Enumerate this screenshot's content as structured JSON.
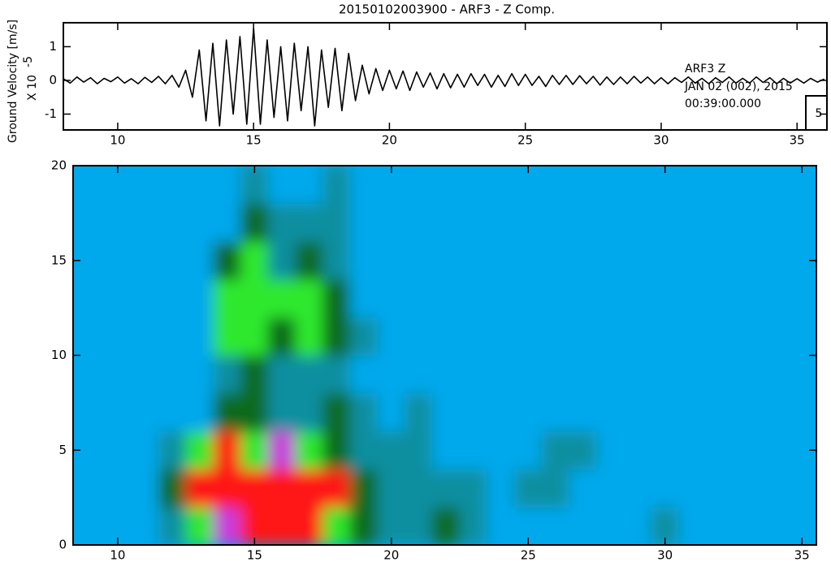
{
  "chart_data": [
    {
      "type": "line",
      "title": "20150102003900 - ARF3 - Z Comp.",
      "ylabel": "Ground Velocity [m/s]",
      "yscale_label": "X 10",
      "yscale_exponent": "-5",
      "annotations": [
        "ARF3  Z",
        "JAN 02 (002), 2015",
        "00:39:00.000"
      ],
      "box_label": 5,
      "color": "#000000",
      "xlim": [
        8,
        36.1
      ],
      "xticks": [
        10,
        15,
        20,
        25,
        30,
        35
      ],
      "ylim": [
        -1.47,
        1.71
      ],
      "yticks": [
        -1,
        0,
        1
      ],
      "x": [
        8,
        8.25,
        8.5,
        8.75,
        9,
        9.25,
        9.5,
        9.75,
        10,
        10.25,
        10.5,
        10.75,
        11,
        11.25,
        11.5,
        11.75,
        12,
        12.25,
        12.5,
        12.75,
        13,
        13.25,
        13.5,
        13.75,
        14,
        14.25,
        14.5,
        14.75,
        15,
        15.25,
        15.5,
        15.75,
        16,
        16.25,
        16.5,
        16.75,
        17,
        17.25,
        17.5,
        17.75,
        18,
        18.25,
        18.5,
        18.75,
        19,
        19.25,
        19.5,
        19.75,
        20,
        20.25,
        20.5,
        20.75,
        21,
        21.25,
        21.5,
        21.75,
        22,
        22.25,
        22.5,
        22.75,
        23,
        23.25,
        23.5,
        23.75,
        24,
        24.25,
        24.5,
        24.75,
        25,
        25.25,
        25.5,
        25.75,
        26,
        26.25,
        26.5,
        26.75,
        27,
        27.25,
        27.5,
        27.75,
        28,
        28.25,
        28.5,
        28.75,
        29,
        29.25,
        29.5,
        29.75,
        30,
        30.25,
        30.5,
        30.75,
        31,
        31.25,
        31.5,
        31.75,
        32,
        32.25,
        32.5,
        32.75,
        33,
        33.25,
        33.5,
        33.75,
        34,
        34.25,
        34.5,
        34.75,
        35,
        35.25,
        35.5,
        35.75,
        36
      ],
      "values": [
        0.05,
        -0.08,
        0.1,
        -0.05,
        0.08,
        -0.1,
        0.06,
        -0.04,
        0.1,
        -0.08,
        0.05,
        -0.1,
        0.09,
        -0.06,
        0.12,
        -0.1,
        0.15,
        -0.2,
        0.3,
        -0.5,
        0.9,
        -1.2,
        1.1,
        -1.35,
        1.2,
        -1.0,
        1.3,
        -1.3,
        1.55,
        -1.3,
        1.2,
        -1.1,
        1.0,
        -1.2,
        1.1,
        -0.9,
        1.0,
        -1.35,
        0.9,
        -0.8,
        0.95,
        -0.9,
        0.8,
        -0.6,
        0.45,
        -0.4,
        0.35,
        -0.3,
        0.3,
        -0.25,
        0.28,
        -0.3,
        0.25,
        -0.2,
        0.22,
        -0.25,
        0.2,
        -0.22,
        0.18,
        -0.2,
        0.2,
        -0.15,
        0.18,
        -0.2,
        0.15,
        -0.18,
        0.2,
        -0.15,
        0.18,
        -0.15,
        0.12,
        -0.18,
        0.15,
        -0.12,
        0.15,
        -0.12,
        0.14,
        -0.1,
        0.12,
        -0.14,
        0.1,
        -0.12,
        0.1,
        -0.1,
        0.12,
        -0.08,
        0.1,
        -0.1,
        0.08,
        -0.1,
        0.08,
        -0.06,
        0.1,
        -0.08,
        0.06,
        -0.1,
        0.08,
        -0.06,
        0.1,
        -0.08,
        0.06,
        -0.08,
        0.1,
        -0.06,
        0.08,
        -0.1,
        0.06,
        -0.08,
        0.05,
        -0.08,
        0.06,
        -0.05,
        0.04
      ]
    },
    {
      "type": "heatmap",
      "xlim": [
        8.37,
        35.53
      ],
      "xticks": [
        10,
        15,
        20,
        25,
        30,
        35
      ],
      "ylim": [
        0,
        20
      ],
      "yticks": [
        0,
        5,
        10,
        15,
        20
      ],
      "colors": [
        "#00a8ec",
        "#0f8fa0",
        "#0b6a1c",
        "#2ee82e",
        "#ff1414",
        "#c83cdc"
      ],
      "x": [
        9,
        10,
        11,
        12,
        13,
        14,
        15,
        16,
        17,
        18,
        19,
        20,
        21,
        22,
        23,
        24,
        25,
        26,
        27,
        28,
        29,
        30,
        31,
        32,
        33,
        34,
        35
      ],
      "y": [
        1,
        3,
        5,
        7,
        9,
        11,
        13,
        15,
        17,
        19
      ],
      "z": [
        [
          0,
          0,
          0,
          1,
          3,
          5,
          4,
          4,
          4,
          3,
          2,
          1,
          1,
          2,
          1,
          0,
          0,
          0,
          0,
          0,
          0,
          1,
          0,
          0,
          0,
          0,
          0
        ],
        [
          0,
          0,
          0,
          2,
          4,
          4,
          4,
          4,
          4,
          4,
          2,
          1,
          1,
          1,
          1,
          0,
          1,
          1,
          0,
          0,
          0,
          0,
          0,
          0,
          0,
          0,
          0
        ],
        [
          0,
          0,
          0,
          1,
          3,
          4,
          3,
          5,
          3,
          2,
          1,
          1,
          1,
          0,
          0,
          0,
          0,
          1,
          1,
          0,
          0,
          0,
          0,
          0,
          0,
          0,
          0
        ],
        [
          0,
          0,
          0,
          0,
          0,
          2,
          2,
          1,
          1,
          2,
          1,
          0,
          1,
          0,
          0,
          0,
          0,
          0,
          0,
          0,
          0,
          0,
          0,
          0,
          0,
          0,
          0
        ],
        [
          0,
          0,
          0,
          0,
          0,
          1,
          2,
          1,
          1,
          1,
          0,
          0,
          0,
          0,
          0,
          0,
          0,
          0,
          0,
          0,
          0,
          0,
          0,
          0,
          0,
          0,
          0
        ],
        [
          0,
          0,
          0,
          0,
          0,
          3,
          3,
          2,
          3,
          2,
          1,
          0,
          0,
          0,
          0,
          0,
          0,
          0,
          0,
          0,
          0,
          0,
          0,
          0,
          0,
          0,
          0
        ],
        [
          0,
          0,
          0,
          0,
          0,
          3,
          3,
          3,
          3,
          2,
          0,
          0,
          0,
          0,
          0,
          0,
          0,
          0,
          0,
          0,
          0,
          0,
          0,
          0,
          0,
          0,
          0
        ],
        [
          0,
          0,
          0,
          0,
          0,
          2,
          3,
          1,
          2,
          1,
          0,
          0,
          0,
          0,
          0,
          0,
          0,
          0,
          0,
          0,
          0,
          0,
          0,
          0,
          0,
          0,
          0
        ],
        [
          0,
          0,
          0,
          0,
          0,
          0,
          2,
          1,
          1,
          1,
          0,
          0,
          0,
          0,
          0,
          0,
          0,
          0,
          0,
          0,
          0,
          0,
          0,
          0,
          0,
          0,
          0
        ],
        [
          0,
          0,
          0,
          0,
          0,
          0,
          1,
          0,
          0,
          1,
          0,
          0,
          0,
          0,
          0,
          0,
          0,
          0,
          0,
          0,
          0,
          0,
          0,
          0,
          0,
          0,
          0
        ]
      ]
    }
  ]
}
